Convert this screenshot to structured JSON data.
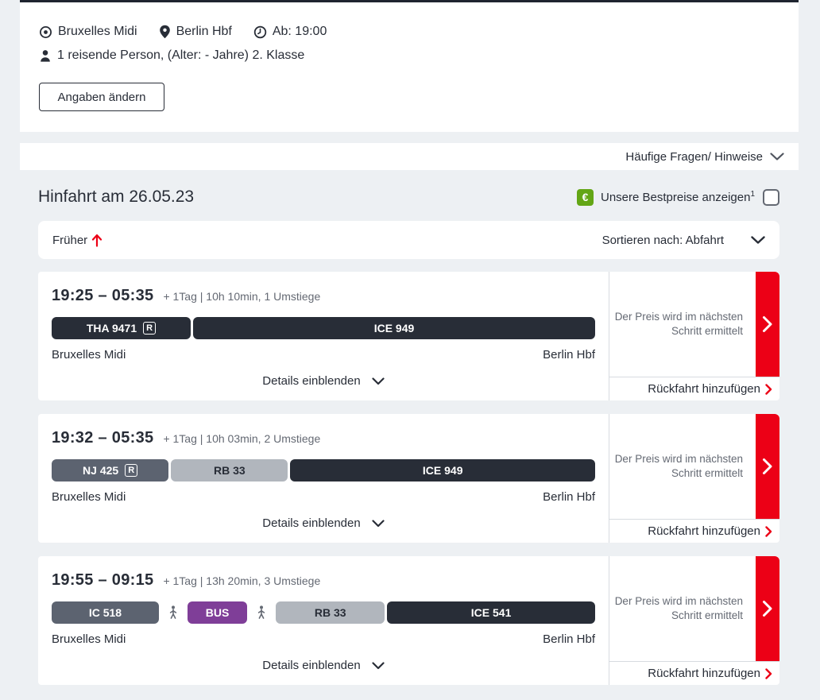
{
  "colors": {
    "accent_red": "#ec0016",
    "green": "#63a615",
    "dark": "#282d37",
    "gray_text": "#646973",
    "pill_slate": "#5c6370",
    "pill_light": "#b1b6bd",
    "pill_bus": "#7f3e98",
    "page_bg": "#edf0f3"
  },
  "summary": {
    "origin": "Bruxelles Midi",
    "destination": "Berlin Hbf",
    "departure": "Ab: 19:00",
    "passengers": "1 reisende Person, (Alter: - Jahre) 2. Klasse",
    "change_button": "Angaben ändern"
  },
  "faq": {
    "label": "Häufige Fragen/ Hinweise"
  },
  "results": {
    "heading": "Hinfahrt am 26.05.23",
    "bestprice_label": "Unsere Bestpreise anzeigen",
    "bestprice_superscript": "1",
    "earlier_label": "Früher",
    "sort_label": "Sortieren nach: Abfahrt",
    "details_label": "Details einblenden",
    "price_note_line1": "Der Preis wird im nächsten",
    "price_note_line2": "Schritt ermittelt",
    "return_label": "Rückfahrt hinzufügen",
    "journeys": [
      {
        "times": "19:25 – 05:35",
        "meta": "+ 1Tag | 10h 10min, 1 Umstiege",
        "from": "Bruxelles Midi",
        "to": "Berlin Hbf",
        "segments": [
          {
            "label": "THA 9471",
            "kind": "dark",
            "badge": "R",
            "grow": 175
          },
          {
            "label": "ICE 949",
            "kind": "dark",
            "grow": 506
          }
        ]
      },
      {
        "times": "19:32 – 05:35",
        "meta": "+ 1Tag | 10h 03min, 2 Umstiege",
        "from": "Bruxelles Midi",
        "to": "Berlin Hbf",
        "segments": [
          {
            "label": "NJ 425",
            "kind": "slate",
            "badge": "R",
            "grow": 147
          },
          {
            "label": "RB 33",
            "kind": "light",
            "grow": 147
          },
          {
            "label": "ICE 949",
            "kind": "dark",
            "grow": 383
          }
        ]
      },
      {
        "times": "19:55 – 09:15",
        "meta": "+ 1Tag | 13h 20min, 3 Umstiege",
        "from": "Bruxelles Midi",
        "to": "Berlin Hbf",
        "segments": [
          {
            "label": "IC 518",
            "kind": "slate",
            "grow": 136
          },
          {
            "kind": "walk"
          },
          {
            "label": "BUS",
            "kind": "bus",
            "grow": 76
          },
          {
            "kind": "walk"
          },
          {
            "label": "RB 33",
            "kind": "light",
            "grow": 138
          },
          {
            "label": "ICE 541",
            "kind": "dark",
            "grow": 264
          }
        ]
      }
    ]
  }
}
